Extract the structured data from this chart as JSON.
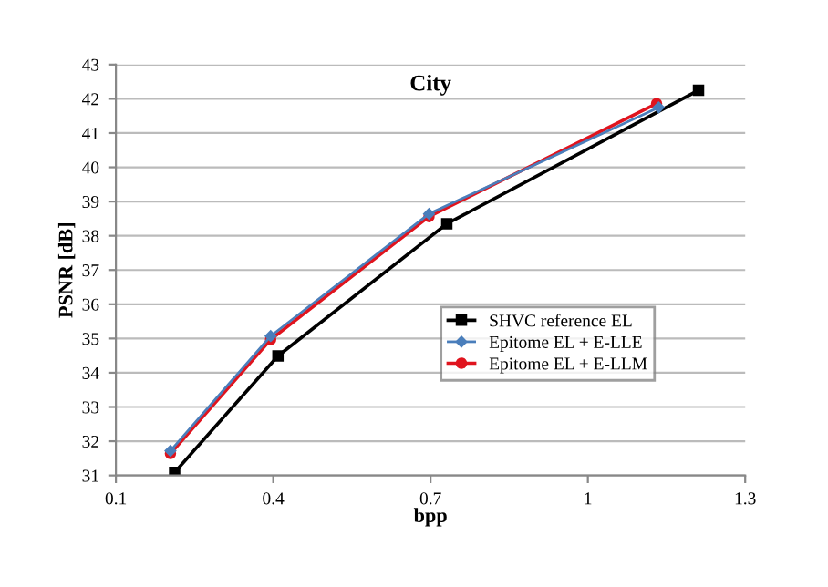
{
  "chart_data": {
    "type": "line",
    "title": "City",
    "xlabel": "bpp",
    "ylabel": "PSNR [dB]",
    "xlim": [
      0.1,
      1.3
    ],
    "xticks": [
      0.1,
      0.4,
      0.7,
      1,
      1.3
    ],
    "ylim": [
      31,
      43
    ],
    "yticks": [
      31,
      32,
      33,
      34,
      35,
      36,
      37,
      38,
      39,
      40,
      41,
      42,
      43
    ],
    "grid": "y",
    "legend": "lower right",
    "series": [
      {
        "name": "SHVC reference EL",
        "color": "#000000",
        "marker": "square",
        "x": [
          0.212,
          0.409,
          0.731,
          1.211
        ],
        "values": [
          31.09,
          34.49,
          38.35,
          42.25
        ]
      },
      {
        "name": "Epitome EL + E-LLE",
        "color": "#4a7ebb",
        "marker": "diamond",
        "x": [
          0.204,
          0.395,
          0.697,
          1.135
        ],
        "values": [
          31.72,
          35.07,
          38.64,
          41.75
        ]
      },
      {
        "name": "Epitome EL + E-LLM",
        "color": "#e0141e",
        "marker": "circle",
        "x": [
          0.204,
          0.395,
          0.697,
          1.131
        ],
        "values": [
          31.64,
          34.97,
          38.56,
          41.86
        ]
      }
    ]
  }
}
